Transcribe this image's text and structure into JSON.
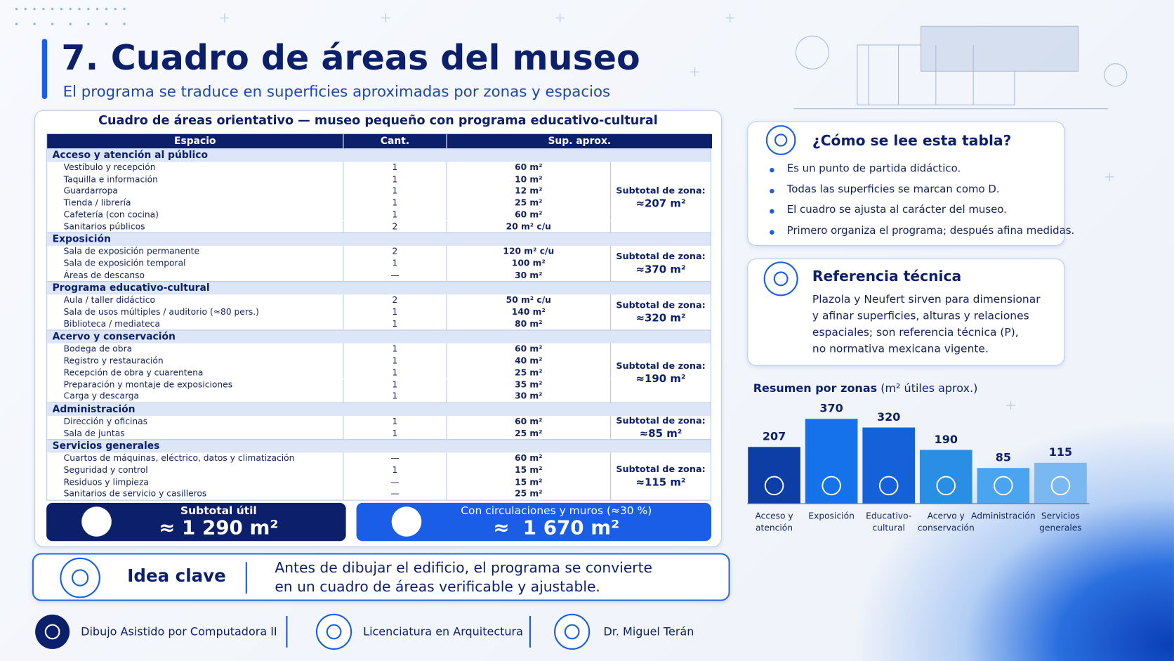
{
  "header": {
    "number": "7.",
    "title": "Cuadro de áreas del museo",
    "subtitle": "El programa se traduce en superficies aproximadas por zonas y espacios"
  },
  "table": {
    "caption": "Cuadro de áreas orientativo — museo pequeño con programa educativo-cultural",
    "columns": [
      "Espacio",
      "Cant.",
      "Sup. aprox."
    ],
    "zones": [
      {
        "name": "Acceso y atención al público",
        "subtotal_label": "Subtotal de zona:",
        "subtotal": "≈207 m²",
        "rows": [
          [
            "Vestíbulo y recepción",
            "1",
            "60 m²"
          ],
          [
            "Taquilla e información",
            "1",
            "10 m²"
          ],
          [
            "Guardarropa",
            "1",
            "12 m²"
          ],
          [
            "Tienda / librería",
            "1",
            "25 m²"
          ],
          [
            "Cafetería (con cocina)",
            "1",
            "60 m²"
          ],
          [
            "Sanitarios públicos",
            "2",
            "20 m² c/u"
          ]
        ]
      },
      {
        "name": "Exposición",
        "subtotal_label": "Subtotal de zona:",
        "subtotal": "≈370 m²",
        "rows": [
          [
            "Sala de exposición permanente",
            "2",
            "120 m² c/u"
          ],
          [
            "Sala de exposición temporal",
            "1",
            "100 m²"
          ],
          [
            "Áreas de descanso",
            "—",
            "30 m²"
          ]
        ]
      },
      {
        "name": "Programa educativo-cultural",
        "subtotal_label": "Subtotal de zona:",
        "subtotal": "≈320 m²",
        "rows": [
          [
            "Aula / taller didáctico",
            "2",
            "50 m² c/u"
          ],
          [
            "Sala de usos múltiples / auditorio (≈80 pers.)",
            "1",
            "140 m²"
          ],
          [
            "Biblioteca / mediateca",
            "1",
            "80 m²"
          ]
        ]
      },
      {
        "name": "Acervo y conservación",
        "subtotal_label": "Subtotal de zona:",
        "subtotal": "≈190 m²",
        "rows": [
          [
            "Bodega de obra",
            "1",
            "60 m²"
          ],
          [
            "Registro y restauración",
            "1",
            "40 m²"
          ],
          [
            "Recepción de obra y cuarentena",
            "1",
            "25 m²"
          ],
          [
            "Preparación y montaje de exposiciones",
            "1",
            "35 m²"
          ],
          [
            "Carga y descarga",
            "1",
            "30 m²"
          ]
        ]
      },
      {
        "name": "Administración",
        "subtotal_label": "Subtotal de zona:",
        "subtotal": "≈85 m²",
        "rows": [
          [
            "Dirección y oficinas",
            "1",
            "60 m²"
          ],
          [
            "Sala de juntas",
            "1",
            "25 m²"
          ]
        ]
      },
      {
        "name": "Servicios generales",
        "subtotal_label": "Subtotal de zona:",
        "subtotal": "≈115 m²",
        "rows": [
          [
            "Cuartos de máquinas, eléctrico, datos y climatización",
            "—",
            "60 m²"
          ],
          [
            "Seguridad y control",
            "1",
            "15 m²"
          ],
          [
            "Residuos y limpieza",
            "—",
            "15 m²"
          ],
          [
            "Sanitarios de servicio y casilleros",
            "—",
            "25 m²"
          ]
        ]
      }
    ]
  },
  "totals": [
    {
      "label": "Subtotal útil",
      "value": "≈ 1 290 m²"
    },
    {
      "label": "Con circulaciones y muros (≈30 %)",
      "value": "≈  1 670 m²"
    }
  ],
  "key_idea": {
    "title": "Idea clave",
    "lines": [
      "Antes de dibujar el edificio, el programa se convierte",
      "en un cuadro de áreas verificable y ajustable."
    ]
  },
  "how_to_read": {
    "title": "¿Cómo se lee esta tabla?",
    "items": [
      "Es un punto de partida didáctico.",
      "Todas las superficies se marcan como D.",
      "El cuadro se ajusta al carácter del museo.",
      "Primero organiza el programa; después afina medidas."
    ]
  },
  "reference": {
    "title": "Referencia técnica",
    "lines": [
      "Plazola y Neufert sirven para dimensionar",
      "y afinar superficies, alturas y relaciones",
      "espaciales; son referencia técnica (P),",
      "no normativa mexicana vigente."
    ]
  },
  "summary": {
    "title": "Resumen por zonas",
    "unit": "(m² útiles aprox.)",
    "categories": [
      [
        "Acceso y",
        "atención"
      ],
      [
        "Exposición"
      ],
      [
        "Educativo-",
        "cultural"
      ],
      [
        "Acervo y",
        "conservación"
      ],
      [
        "Administración"
      ],
      [
        "Servicios",
        "generales"
      ]
    ],
    "values": [
      207,
      370,
      320,
      190,
      85,
      115
    ],
    "colors": [
      "#0c3ea6",
      "#1672ea",
      "#1561da",
      "#2a8fe4",
      "#4ba4ef",
      "#7ab8f1"
    ]
  },
  "footer": [
    "Dibujo Asistido por Computadora II",
    "Licenciatura en Arquitectura",
    "Dr. Miguel Terán"
  ]
}
